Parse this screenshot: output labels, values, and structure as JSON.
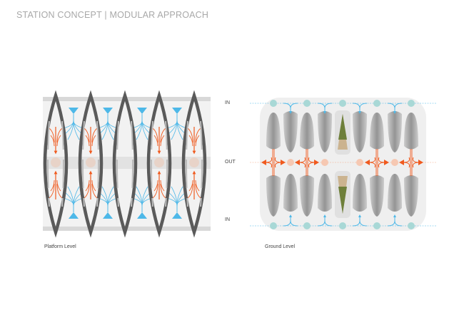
{
  "header": {
    "title": "STATION CONCEPT  |  MODULAR APPROACH"
  },
  "platform": {
    "caption": "Platform Level"
  },
  "ground": {
    "caption": "Ground Level",
    "labels": {
      "in_top": "IN",
      "out": "OUT",
      "in_bottom": "IN"
    }
  },
  "colors": {
    "inflow": "#4db8e8",
    "outflow": "#f05a1e",
    "node_in": "#a8d8d6",
    "node_out": "#f6c8b2",
    "structure": "#5a5a5a",
    "green_area": "#6e7f3a",
    "sand_area": "#cbb38f"
  }
}
